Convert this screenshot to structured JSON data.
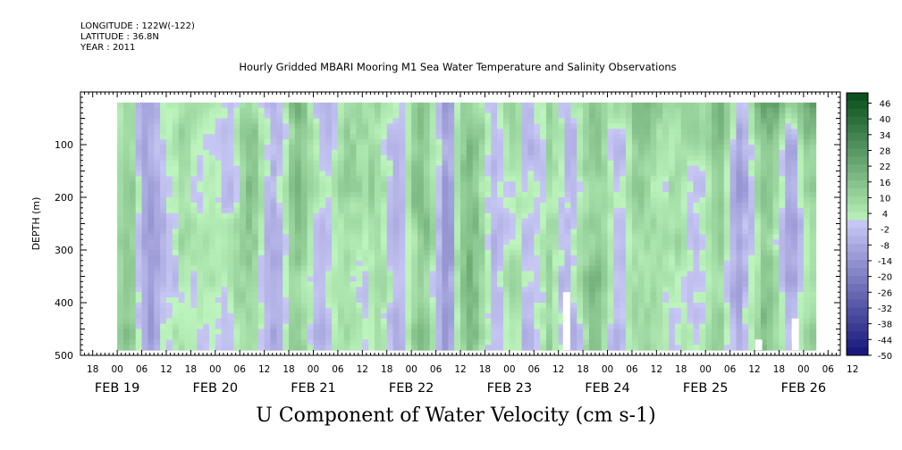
{
  "header": {
    "longitude": "LONGITUDE : 122W(-122)",
    "latitude": "LATITUDE : 36.8N",
    "year": "YEAR : 2011"
  },
  "chart_data": {
    "type": "heatmap",
    "title": "Hourly Gridded MBARI Mooring M1 Sea Water Temperature and Salinity Observations",
    "xlabel": "",
    "ylabel": "DEPTH (m)",
    "variable_label": "U Component of Water Velocity (cm s-1)",
    "x_hour_ticks": [
      "18",
      "00",
      "06",
      "12",
      "18",
      "00",
      "06",
      "12",
      "18",
      "00",
      "06",
      "12",
      "18",
      "00",
      "06",
      "12",
      "18",
      "00",
      "06",
      "12",
      "18",
      "00",
      "06",
      "12",
      "18",
      "00",
      "06",
      "12",
      "18",
      "00",
      "06",
      "12"
    ],
    "x_date_labels": [
      "FEB 19",
      "FEB 20",
      "FEB 21",
      "FEB 22",
      "FEB 23",
      "FEB 24",
      "FEB 25",
      "FEB 26"
    ],
    "xlim_hours": [
      -9,
      177
    ],
    "y_ticks": [
      "100",
      "200",
      "300",
      "400",
      "500"
    ],
    "ylim": [
      500,
      0
    ],
    "y_reversed": true,
    "data_depth_range": [
      20,
      490
    ],
    "data_time_range_hours": [
      0,
      171
    ],
    "colorbar": {
      "labels": [
        "46",
        "40",
        "34",
        "28",
        "22",
        "16",
        "10",
        "4",
        "-2",
        "-8",
        "-14",
        "-20",
        "-26",
        "-32",
        "-38",
        "-44",
        "-50"
      ],
      "min": -50,
      "max": 49,
      "step": 3
    },
    "pattern_summary": "Velocities mostly between -8 and +16 cm s-1: alternating vertical bands of light blue (negative) and green (positive). Strongest positive values (about +22 to +30) in the upper 100 m after FEB 24 and FEB 26.",
    "missing_data_columns_hours": [
      {
        "hour": 110,
        "from_depth": 380
      },
      {
        "hour": 157,
        "from_depth": 470
      },
      {
        "hour": 166,
        "from_depth": 430
      }
    ]
  }
}
